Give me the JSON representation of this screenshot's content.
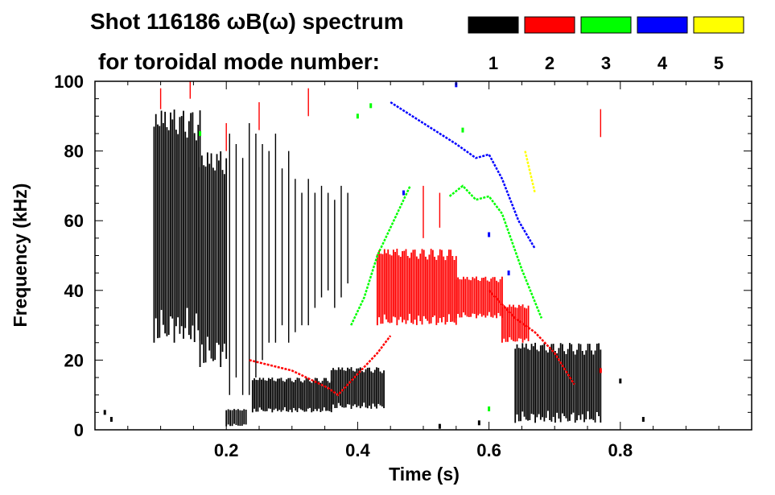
{
  "chart_data": {
    "type": "scatter",
    "title": "Shot 116186 ωB(ω) spectrum",
    "subtitle": "for toroidal mode number:",
    "xlabel": "Time (s)",
    "ylabel": "Frequency (kHz)",
    "xlim": [
      0.0,
      1.0
    ],
    "ylim": [
      0,
      100
    ],
    "x_ticks": [
      {
        "value": 0.2,
        "label": "0.2"
      },
      {
        "value": 0.4,
        "label": "0.4"
      },
      {
        "value": 0.6,
        "label": "0.6"
      },
      {
        "value": 0.8,
        "label": "0.8"
      }
    ],
    "y_ticks": [
      {
        "value": 0,
        "label": "0"
      },
      {
        "value": 20,
        "label": "20"
      },
      {
        "value": 40,
        "label": "40"
      },
      {
        "value": 60,
        "label": "60"
      },
      {
        "value": 80,
        "label": "80"
      },
      {
        "value": 100,
        "label": "100"
      }
    ],
    "legend": [
      {
        "label": "1",
        "color": "#000000"
      },
      {
        "label": "2",
        "color": "#ff0000"
      },
      {
        "label": "3",
        "color": "#00ff00"
      },
      {
        "label": "4",
        "color": "#0000ff"
      },
      {
        "label": "5",
        "color": "#ffff00"
      }
    ],
    "series": [
      {
        "name": "n=1",
        "color": "#000000",
        "bands": [
          {
            "t0": 0.09,
            "t1": 0.16,
            "lo": 25,
            "hi": 92
          },
          {
            "t0": 0.16,
            "t1": 0.2,
            "lo": 18,
            "hi": 80
          },
          {
            "t0": 0.2,
            "t1": 0.23,
            "lo": 1,
            "hi": 6
          },
          {
            "t0": 0.24,
            "t1": 0.36,
            "lo": 5,
            "hi": 15
          },
          {
            "t0": 0.36,
            "t1": 0.44,
            "lo": 6,
            "hi": 18
          },
          {
            "t0": 0.64,
            "t1": 0.77,
            "lo": 2,
            "hi": 25
          }
        ],
        "spikes": [
          {
            "t": 0.205,
            "lo": 10,
            "hi": 85
          },
          {
            "t": 0.215,
            "lo": 15,
            "hi": 82
          },
          {
            "t": 0.225,
            "lo": 10,
            "hi": 78
          },
          {
            "t": 0.235,
            "lo": 10,
            "hi": 88
          },
          {
            "t": 0.245,
            "lo": 15,
            "hi": 85
          },
          {
            "t": 0.255,
            "lo": 20,
            "hi": 82
          },
          {
            "t": 0.265,
            "lo": 25,
            "hi": 80
          },
          {
            "t": 0.275,
            "lo": 25,
            "hi": 85
          },
          {
            "t": 0.285,
            "lo": 30,
            "hi": 75
          },
          {
            "t": 0.295,
            "lo": 25,
            "hi": 80
          },
          {
            "t": 0.305,
            "lo": 28,
            "hi": 72
          },
          {
            "t": 0.315,
            "lo": 30,
            "hi": 68
          },
          {
            "t": 0.325,
            "lo": 30,
            "hi": 72
          },
          {
            "t": 0.335,
            "lo": 35,
            "hi": 68
          },
          {
            "t": 0.345,
            "lo": 38,
            "hi": 70
          },
          {
            "t": 0.355,
            "lo": 40,
            "hi": 68
          },
          {
            "t": 0.365,
            "lo": 35,
            "hi": 66
          },
          {
            "t": 0.375,
            "lo": 38,
            "hi": 70
          },
          {
            "t": 0.385,
            "lo": 42,
            "hi": 68
          }
        ],
        "points": [
          {
            "t": 0.015,
            "f": 5
          },
          {
            "t": 0.025,
            "f": 3
          },
          {
            "t": 0.525,
            "f": 1
          },
          {
            "t": 0.585,
            "f": 2
          },
          {
            "t": 0.8,
            "f": 14
          },
          {
            "t": 0.835,
            "f": 3
          }
        ]
      },
      {
        "name": "n=2",
        "color": "#ff0000",
        "bands": [
          {
            "t0": 0.43,
            "t1": 0.55,
            "lo": 30,
            "hi": 52
          },
          {
            "t0": 0.55,
            "t1": 0.62,
            "lo": 32,
            "hi": 44
          },
          {
            "t0": 0.62,
            "t1": 0.66,
            "lo": 25,
            "hi": 36
          }
        ],
        "curves": [
          {
            "points": [
              [
                0.235,
                20
              ],
              [
                0.3,
                17
              ],
              [
                0.355,
                12
              ],
              [
                0.37,
                10
              ],
              [
                0.4,
                16
              ],
              [
                0.43,
                22
              ],
              [
                0.45,
                27
              ]
            ]
          },
          {
            "points": [
              [
                0.6,
                40
              ],
              [
                0.64,
                32
              ],
              [
                0.67,
                28
              ],
              [
                0.7,
                22
              ],
              [
                0.73,
                13
              ]
            ]
          }
        ],
        "spikes": [
          {
            "t": 0.1,
            "lo": 92,
            "hi": 98
          },
          {
            "t": 0.145,
            "lo": 95,
            "hi": 100
          },
          {
            "t": 0.2,
            "lo": 80,
            "hi": 88
          },
          {
            "t": 0.25,
            "lo": 86,
            "hi": 94
          },
          {
            "t": 0.325,
            "lo": 90,
            "hi": 98
          },
          {
            "t": 0.5,
            "lo": 55,
            "hi": 70
          },
          {
            "t": 0.525,
            "lo": 58,
            "hi": 68
          },
          {
            "t": 0.77,
            "lo": 84,
            "hi": 92
          }
        ],
        "points": [
          {
            "t": 0.77,
            "f": 17
          }
        ]
      },
      {
        "name": "n=3",
        "color": "#00ff00",
        "curves": [
          {
            "points": [
              [
                0.39,
                30
              ],
              [
                0.41,
                38
              ],
              [
                0.43,
                50
              ],
              [
                0.455,
                60
              ],
              [
                0.48,
                70
              ]
            ]
          },
          {
            "points": [
              [
                0.54,
                67
              ],
              [
                0.56,
                70
              ],
              [
                0.58,
                66
              ],
              [
                0.6,
                67
              ],
              [
                0.62,
                62
              ],
              [
                0.65,
                46
              ],
              [
                0.68,
                32
              ]
            ]
          }
        ],
        "points": [
          {
            "t": 0.16,
            "f": 85
          },
          {
            "t": 0.4,
            "f": 90
          },
          {
            "t": 0.42,
            "f": 93
          },
          {
            "t": 0.56,
            "f": 86
          },
          {
            "t": 0.6,
            "f": 6
          }
        ]
      },
      {
        "name": "n=4",
        "color": "#0000ff",
        "curves": [
          {
            "points": [
              [
                0.45,
                94
              ],
              [
                0.5,
                88
              ],
              [
                0.55,
                82
              ],
              [
                0.58,
                78
              ],
              [
                0.6,
                79
              ],
              [
                0.62,
                72
              ],
              [
                0.645,
                60
              ],
              [
                0.67,
                52
              ]
            ]
          }
        ],
        "points": [
          {
            "t": 0.55,
            "f": 99
          },
          {
            "t": 0.47,
            "f": 68
          },
          {
            "t": 0.6,
            "f": 56
          },
          {
            "t": 0.63,
            "f": 45
          }
        ]
      },
      {
        "name": "n=5",
        "color": "#ffff00",
        "curves": [
          {
            "points": [
              [
                0.655,
                80
              ],
              [
                0.665,
                72
              ],
              [
                0.67,
                68
              ]
            ]
          }
        ]
      }
    ]
  }
}
